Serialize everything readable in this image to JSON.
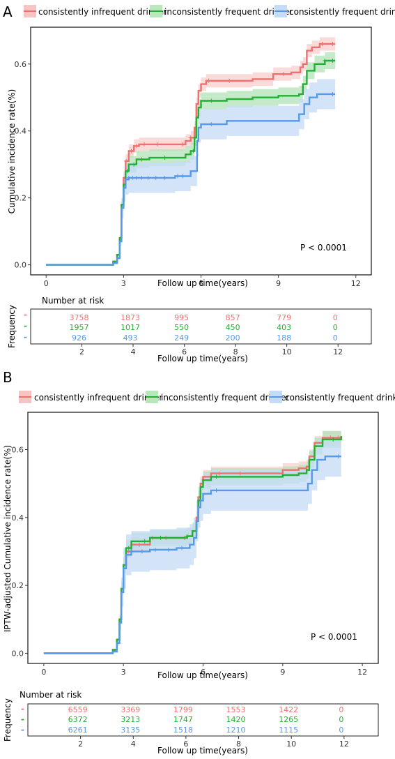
{
  "chart_data": [
    {
      "type": "line",
      "panel_label": "A",
      "legend": [
        {
          "name": "consistently infrequent drinker",
          "color": "#f07070"
        },
        {
          "name": "inconsistently frequent drinker",
          "color": "#22b033"
        },
        {
          "name": "consistently frequent drinker",
          "color": "#5599e8"
        }
      ],
      "legend_placement": "top",
      "xlabel": "Follow up time(years)",
      "ylabel": "Cumulative incidence rate(%)",
      "xlim": [
        -0.6,
        12.6
      ],
      "ylim": [
        -0.03,
        0.71
      ],
      "x_ticks": [
        "0",
        "3",
        "6",
        "9",
        "12"
      ],
      "x_tick_values": [
        0,
        3,
        6,
        9,
        12
      ],
      "y_ticks": [
        "0.0",
        "0.2",
        "0.4",
        "0.6"
      ],
      "y_tick_values": [
        0.0,
        0.2,
        0.4,
        0.6
      ],
      "annotation": "P < 0.0001",
      "series": [
        {
          "name": "consistently infrequent drinker",
          "color": "#f07070",
          "x": [
            0,
            2.4,
            2.6,
            2.75,
            2.85,
            2.92,
            3.0,
            3.08,
            3.2,
            3.4,
            3.6,
            4.0,
            5.0,
            5.4,
            5.6,
            5.75,
            5.82,
            5.9,
            6.0,
            6.2,
            7.0,
            8.0,
            8.8,
            9.5,
            9.85,
            9.95,
            10.1,
            10.3,
            10.6,
            11.2
          ],
          "y": [
            0,
            0,
            0.01,
            0.03,
            0.08,
            0.18,
            0.26,
            0.31,
            0.34,
            0.355,
            0.36,
            0.36,
            0.36,
            0.37,
            0.38,
            0.41,
            0.48,
            0.52,
            0.54,
            0.55,
            0.55,
            0.555,
            0.57,
            0.575,
            0.59,
            0.6,
            0.64,
            0.65,
            0.66,
            0.66
          ],
          "band": 0.02,
          "censor_x": [
            3.1,
            3.3,
            3.5,
            3.8,
            4.3,
            5.3,
            5.6,
            6.3,
            7.1,
            9.2,
            10.7,
            11.1
          ]
        },
        {
          "name": "inconsistently frequent drinker",
          "color": "#22b033",
          "x": [
            0,
            2.4,
            2.6,
            2.75,
            2.85,
            2.92,
            3.0,
            3.08,
            3.2,
            3.5,
            4.0,
            5.0,
            5.4,
            5.6,
            5.75,
            5.82,
            5.9,
            6.0,
            7.0,
            8.0,
            9.0,
            9.8,
            9.95,
            10.1,
            10.4,
            10.8,
            11.2
          ],
          "y": [
            0,
            0,
            0.01,
            0.03,
            0.08,
            0.18,
            0.24,
            0.28,
            0.3,
            0.315,
            0.32,
            0.32,
            0.33,
            0.34,
            0.38,
            0.44,
            0.47,
            0.49,
            0.495,
            0.5,
            0.505,
            0.51,
            0.54,
            0.58,
            0.6,
            0.61,
            0.61
          ],
          "band": 0.025,
          "censor_x": [
            3.15,
            3.4,
            3.7,
            4.6,
            5.7,
            6.4,
            10.8,
            11.1
          ]
        },
        {
          "name": "consistently frequent drinker",
          "color": "#5599e8",
          "x": [
            0,
            2.4,
            2.6,
            2.75,
            2.85,
            2.92,
            3.0,
            3.08,
            3.2,
            4.0,
            5.0,
            5.6,
            5.85,
            5.9,
            6.0,
            7.0,
            9.0,
            9.6,
            9.8,
            10.0,
            10.2,
            10.5,
            11.2
          ],
          "y": [
            0,
            0,
            0.005,
            0.02,
            0.07,
            0.17,
            0.23,
            0.255,
            0.26,
            0.26,
            0.265,
            0.28,
            0.37,
            0.41,
            0.42,
            0.43,
            0.43,
            0.43,
            0.45,
            0.48,
            0.5,
            0.51,
            0.51
          ],
          "band": 0.045,
          "censor_x": [
            3.2,
            3.35,
            3.5,
            3.7,
            3.95,
            4.25,
            4.6,
            5.1,
            5.3,
            6.4,
            11.1
          ]
        }
      ],
      "risk_table": {
        "title": "Number at risk",
        "ylabel": "Frequency",
        "xlabel": "Follow up time(years)",
        "x_ticks": [
          "2",
          "4",
          "6",
          "8",
          "10",
          "12"
        ],
        "x_tick_values": [
          2,
          4,
          6,
          8,
          10,
          12
        ],
        "times": [
          2,
          4,
          6,
          8,
          10,
          12
        ],
        "rows": [
          {
            "symbol": "-",
            "color": "#f07070",
            "counts": [
              "3758",
              "1873",
              "995",
              "857",
              "779",
              "0"
            ]
          },
          {
            "symbol": "-",
            "color": "#22b033",
            "counts": [
              "1957",
              "1017",
              "550",
              "450",
              "403",
              "0"
            ]
          },
          {
            "symbol": "-",
            "color": "#5599e8",
            "counts": [
              "926",
              "493",
              "249",
              "200",
              "188",
              "0"
            ]
          }
        ]
      }
    },
    {
      "type": "line",
      "panel_label": "B",
      "legend": [
        {
          "name": "consistently infrequent drinker",
          "color": "#f07070"
        },
        {
          "name": "inconsistently frequent drinker",
          "color": "#22b033"
        },
        {
          "name": "consistently frequent drinker",
          "color": "#5599e8"
        }
      ],
      "legend_placement": "top",
      "xlabel": "Follow up time(years)",
      "ylabel": "IPTW-adjusted Cumulative incidence rate(%)",
      "xlim": [
        -0.6,
        12.6
      ],
      "ylim": [
        -0.03,
        0.71
      ],
      "x_ticks": [
        "0",
        "3",
        "6",
        "9",
        "12"
      ],
      "x_tick_values": [
        0,
        3,
        6,
        9,
        12
      ],
      "y_ticks": [
        "0.0",
        "0.2",
        "0.4",
        "0.6"
      ],
      "y_tick_values": [
        0.0,
        0.2,
        0.4,
        0.6
      ],
      "annotation": "P < 0.0001",
      "series": [
        {
          "name": "consistently infrequent drinker",
          "color": "#f07070",
          "x": [
            0,
            2.4,
            2.6,
            2.75,
            2.85,
            2.92,
            3.0,
            3.1,
            3.3,
            4.0,
            5.0,
            5.4,
            5.6,
            5.75,
            5.82,
            5.9,
            6.0,
            6.3,
            7.0,
            8.0,
            9.0,
            9.6,
            9.9,
            10.0,
            10.2,
            10.5,
            11.2
          ],
          "y": [
            0,
            0,
            0.01,
            0.04,
            0.1,
            0.19,
            0.26,
            0.3,
            0.32,
            0.34,
            0.34,
            0.345,
            0.36,
            0.4,
            0.46,
            0.5,
            0.52,
            0.53,
            0.53,
            0.53,
            0.54,
            0.545,
            0.55,
            0.58,
            0.62,
            0.635,
            0.64
          ],
          "band": 0.02,
          "censor_x": [
            3.2,
            3.6,
            4.1,
            4.6,
            5.3,
            6.6,
            7.4,
            10.8,
            11.1
          ]
        },
        {
          "name": "inconsistently frequent drinker",
          "color": "#22b033",
          "x": [
            0,
            2.4,
            2.6,
            2.75,
            2.85,
            2.92,
            3.0,
            3.1,
            3.3,
            4.0,
            5.0,
            5.4,
            5.6,
            5.75,
            5.82,
            5.9,
            6.0,
            6.3,
            7.0,
            8.0,
            9.0,
            9.6,
            9.9,
            10.0,
            10.2,
            10.5,
            11.2
          ],
          "y": [
            0,
            0,
            0.01,
            0.04,
            0.1,
            0.19,
            0.26,
            0.31,
            0.33,
            0.34,
            0.34,
            0.345,
            0.36,
            0.39,
            0.45,
            0.49,
            0.51,
            0.52,
            0.52,
            0.52,
            0.525,
            0.53,
            0.54,
            0.57,
            0.61,
            0.63,
            0.64
          ],
          "band": 0.025,
          "censor_x": [
            3.2,
            3.8,
            4.4,
            5.4,
            6.5,
            10.9
          ]
        },
        {
          "name": "consistently frequent drinker",
          "color": "#5599e8",
          "x": [
            0,
            2.4,
            2.6,
            2.75,
            2.85,
            2.92,
            3.0,
            3.1,
            3.3,
            4.0,
            5.0,
            5.5,
            5.65,
            5.75,
            5.82,
            5.9,
            6.0,
            6.3,
            7.0,
            8.0,
            9.0,
            9.8,
            9.95,
            10.1,
            10.3,
            10.6,
            11.2
          ],
          "y": [
            0,
            0,
            0.005,
            0.03,
            0.09,
            0.18,
            0.25,
            0.29,
            0.3,
            0.305,
            0.31,
            0.32,
            0.34,
            0.39,
            0.43,
            0.45,
            0.47,
            0.48,
            0.48,
            0.48,
            0.48,
            0.48,
            0.5,
            0.54,
            0.57,
            0.58,
            0.58
          ],
          "band": 0.06,
          "censor_x": [
            3.3,
            3.7,
            4.2,
            4.7,
            5.2,
            6.5,
            11.1
          ]
        }
      ],
      "risk_table": {
        "title": "Number at risk",
        "ylabel": "Frequency",
        "xlabel": "Follow up time(years)",
        "x_ticks": [
          "2",
          "4",
          "6",
          "8",
          "10",
          "12"
        ],
        "x_tick_values": [
          2,
          4,
          6,
          8,
          10,
          12
        ],
        "times": [
          2,
          4,
          6,
          8,
          10,
          12
        ],
        "rows": [
          {
            "symbol": "-",
            "color": "#f07070",
            "counts": [
              "6559",
              "3369",
              "1799",
              "1553",
              "1422",
              "0"
            ]
          },
          {
            "symbol": "-",
            "color": "#22b033",
            "counts": [
              "6372",
              "3213",
              "1747",
              "1420",
              "1265",
              "0"
            ]
          },
          {
            "symbol": "-",
            "color": "#5599e8",
            "counts": [
              "6261",
              "3135",
              "1518",
              "1210",
              "1115",
              "0"
            ]
          }
        ]
      }
    }
  ]
}
